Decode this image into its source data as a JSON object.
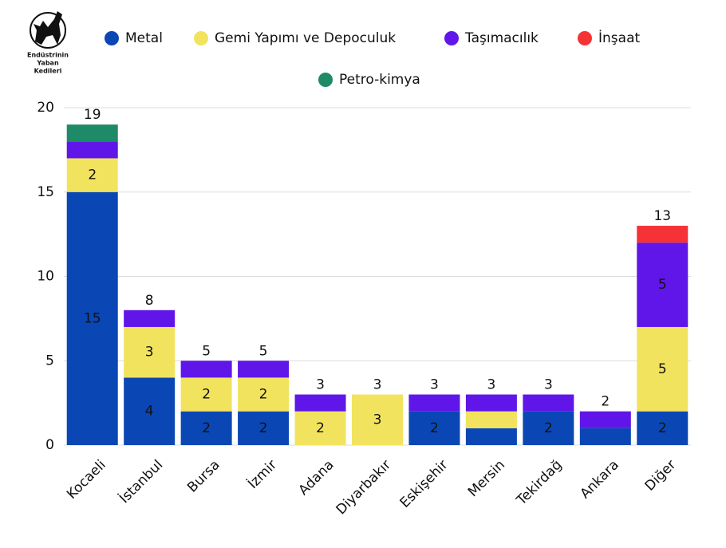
{
  "logo": {
    "lines": [
      "Endüstrinin",
      "Yaban",
      "Kedileri"
    ]
  },
  "chart_data": {
    "type": "stacked_bar",
    "categories": [
      "Kocaeli",
      "İstanbul",
      "Bursa",
      "İzmir",
      "Adana",
      "Diyarbakır",
      "Eskişehir",
      "Mersin",
      "Tekirdağ",
      "Ankara",
      "Diğer"
    ],
    "series": [
      {
        "name": "Metal",
        "color": "#0a47b5",
        "values": [
          15,
          4,
          2,
          2,
          0,
          0,
          2,
          1,
          2,
          1,
          2
        ]
      },
      {
        "name": "Gemi Yapımı ve Depoculuk",
        "color": "#f2e35e",
        "values": [
          2,
          3,
          2,
          2,
          2,
          3,
          0,
          1,
          0,
          0,
          5
        ]
      },
      {
        "name": "Taşımacılık",
        "color": "#6016e8",
        "values": [
          1,
          1,
          1,
          1,
          1,
          0,
          1,
          1,
          1,
          1,
          5
        ]
      },
      {
        "name": "İnşaat",
        "color": "#f53235",
        "values": [
          0,
          0,
          0,
          0,
          0,
          0,
          0,
          0,
          0,
          0,
          1
        ]
      },
      {
        "name": "Petro-kimya",
        "color": "#1e8a68",
        "values": [
          1,
          0,
          0,
          0,
          0,
          0,
          0,
          0,
          0,
          0,
          0
        ]
      }
    ],
    "totals": [
      19,
      8,
      5,
      5,
      3,
      3,
      3,
      3,
      3,
      2,
      13
    ],
    "ylim": [
      0,
      20
    ],
    "yticks": [
      0,
      5,
      10,
      15,
      20
    ],
    "grid": true,
    "legend": "top"
  }
}
